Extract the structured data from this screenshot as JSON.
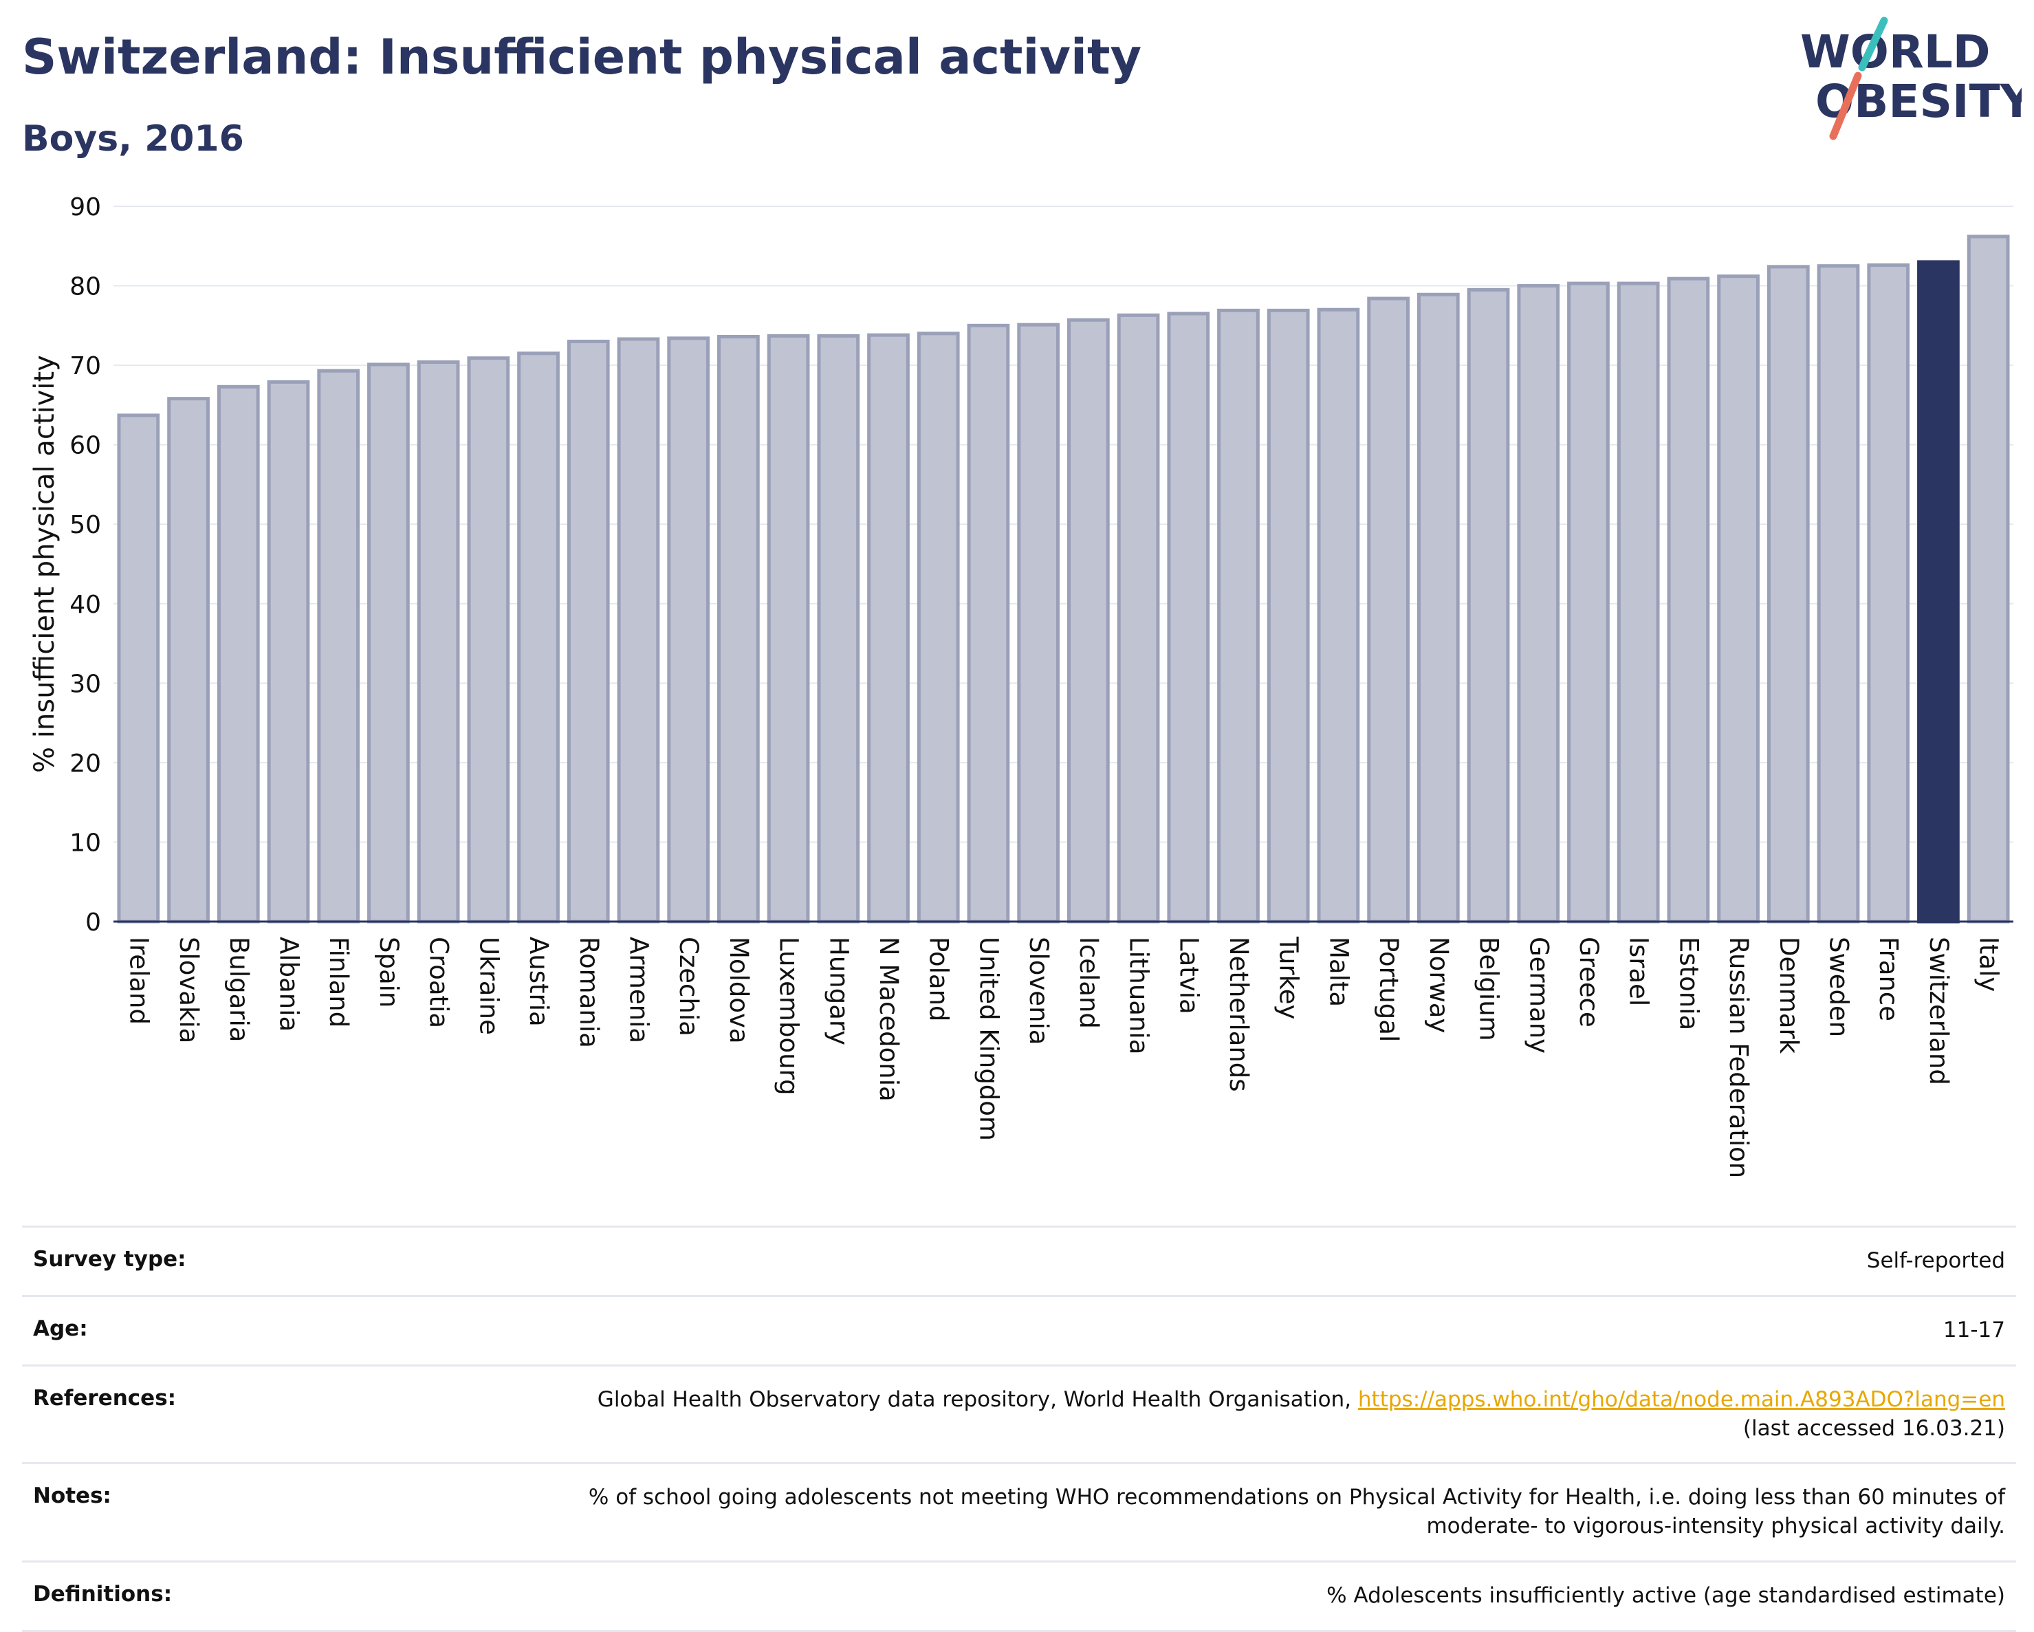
{
  "title": "Switzerland: Insufficient physical activity",
  "subtitle": "Boys, 2016",
  "logo": {
    "line1": "WORLD",
    "line2": "OBESITY"
  },
  "colors": {
    "bar": "#c0c3d1",
    "bar_border": "#9aa0b8",
    "highlight": "#2b3561",
    "text": "#2b3561",
    "link": "#e8a700"
  },
  "chart_data": {
    "type": "bar",
    "ylabel": "% insufficient physical activity",
    "xlabel": "",
    "ylim": [
      0,
      90
    ],
    "yticks": [
      0,
      10,
      20,
      30,
      40,
      50,
      60,
      70,
      80,
      90
    ],
    "grid": true,
    "highlight": "Switzerland",
    "categories": [
      "Ireland",
      "Slovakia",
      "Bulgaria",
      "Albania",
      "Finland",
      "Spain",
      "Croatia",
      "Ukraine",
      "Austria",
      "Romania",
      "Armenia",
      "Czechia",
      "Moldova",
      "Luxembourg",
      "Hungary",
      "N Macedonia",
      "Poland",
      "United Kingdom",
      "Slovenia",
      "Iceland",
      "Lithuania",
      "Latvia",
      "Netherlands",
      "Turkey",
      "Malta",
      "Portugal",
      "Norway",
      "Belgium",
      "Germany",
      "Greece",
      "Israel",
      "Estonia",
      "Russian Federation",
      "Denmark",
      "Sweden",
      "France",
      "Switzerland",
      "Italy"
    ],
    "values": [
      63.7,
      65.8,
      67.3,
      67.9,
      69.3,
      70.1,
      70.4,
      70.9,
      71.5,
      73.0,
      73.3,
      73.4,
      73.6,
      73.7,
      73.7,
      73.8,
      74.0,
      75.0,
      75.1,
      75.7,
      76.3,
      76.5,
      76.9,
      76.9,
      77.0,
      78.4,
      78.9,
      79.5,
      80.0,
      80.3,
      80.3,
      80.9,
      81.2,
      82.4,
      82.5,
      82.6,
      83.0,
      86.2
    ]
  },
  "info": {
    "survey_type_label": "Survey type:",
    "survey_type": "Self-reported",
    "age_label": "Age:",
    "age": "11-17",
    "references_label": "References:",
    "references_text": "Global Health Observatory data repository, World Health Organisation, ",
    "references_link": "https://apps.who.int/gho/data/node.main.A893ADO?lang=en",
    "references_accessed": "(last accessed 16.03.21)",
    "notes_label": "Notes:",
    "notes_line1": "% of school going adolescents not meeting WHO recommendations on Physical Activity for Health, i.e. doing less than 60 minutes of",
    "notes_line2": "moderate- to vigorous-intensity physical activity daily.",
    "definitions_label": "Definitions:",
    "definitions": "% Adolescents insufficiently active (age standardised estimate)"
  }
}
